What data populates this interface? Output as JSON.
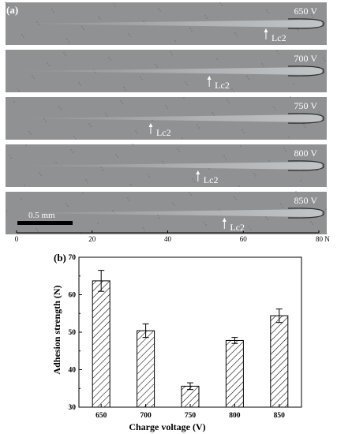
{
  "panel_a": {
    "label": "(a)",
    "scale_bar_label": "0.5 mm",
    "strips": [
      {
        "voltage": "650 V",
        "lc_label": "Lc2",
        "lc_load": 66
      },
      {
        "voltage": "700 V",
        "lc_label": "Lc2",
        "lc_load": 51
      },
      {
        "voltage": "750 V",
        "lc_label": "Lc2",
        "lc_load": 35.5
      },
      {
        "voltage": "800 V",
        "lc_label": "Lc2",
        "lc_load": 48
      },
      {
        "voltage": "850 V",
        "lc_label": "Lc2",
        "lc_load": 55
      }
    ],
    "load_axis": {
      "ticks": [
        "0",
        "20",
        "40",
        "60",
        "80"
      ],
      "unit": "N",
      "range": [
        0,
        80
      ]
    },
    "colors": {
      "strip_bg": "#8f9193",
      "scratch": "#b3b6b8",
      "text": "#ffffff"
    }
  },
  "chart_data": {
    "type": "bar",
    "label": "(b)",
    "categories": [
      "650",
      "700",
      "750",
      "800",
      "850"
    ],
    "values": [
      63.7,
      50.4,
      35.6,
      47.8,
      54.4
    ],
    "errors": [
      2.8,
      1.8,
      0.9,
      0.8,
      1.8
    ],
    "xlabel": "Charge voltage (V)",
    "ylabel": "Adhesion strength (N)",
    "ylim": [
      30,
      70
    ],
    "yticks": [
      "30",
      "40",
      "50",
      "60",
      "70"
    ],
    "bar_style": "hatched",
    "grid": false,
    "legend": "none"
  }
}
